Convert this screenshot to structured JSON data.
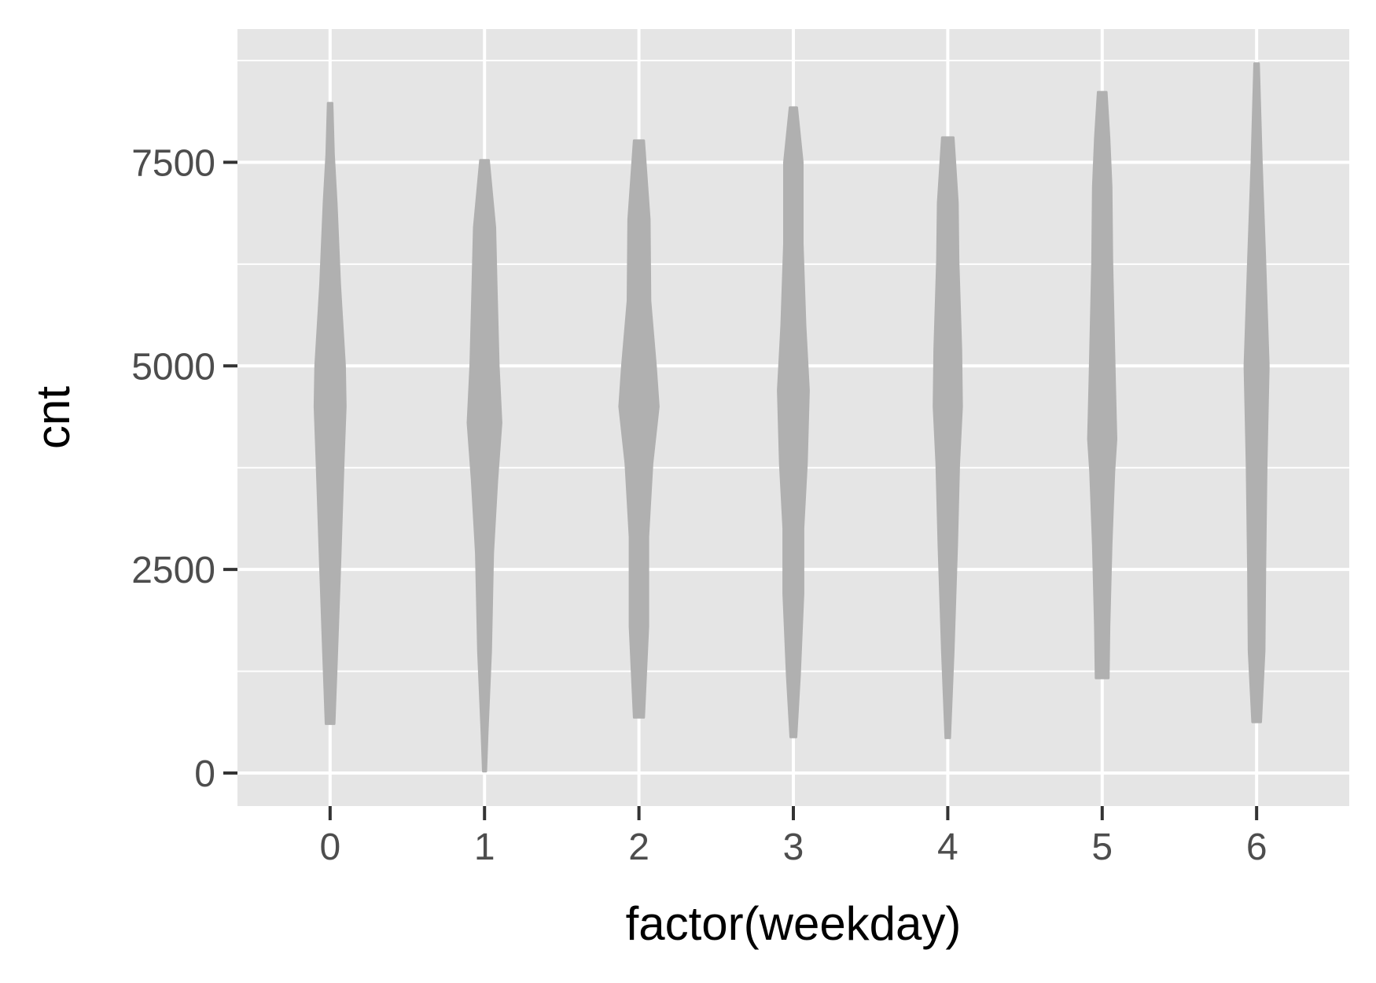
{
  "chart_data": {
    "type": "violin",
    "title": "",
    "xlabel": "factor(weekday)",
    "ylabel": "cnt",
    "categories": [
      "0",
      "1",
      "2",
      "3",
      "4",
      "5",
      "6"
    ],
    "y_ticks": [
      0,
      2500,
      5000,
      7500
    ],
    "ylim": [
      -400,
      9200
    ],
    "grid": true,
    "legend": "none",
    "colors": {
      "panel": "#e5e5e5",
      "grid": "#ffffff",
      "violin": "#b0b0b0",
      "tick_label": "#4d4d4d",
      "axis_title": "#000000"
    },
    "violins": [
      {
        "category": "0",
        "min": 605,
        "max": 8227,
        "profile": [
          [
            605,
            0.06
          ],
          [
            1300,
            0.09
          ],
          [
            2500,
            0.14
          ],
          [
            3800,
            0.19
          ],
          [
            4500,
            0.22
          ],
          [
            5000,
            0.21
          ],
          [
            6000,
            0.14
          ],
          [
            7000,
            0.09
          ],
          [
            7600,
            0.05
          ],
          [
            8227,
            0.03
          ]
        ]
      },
      {
        "category": "1",
        "min": 22,
        "max": 7525,
        "profile": [
          [
            22,
            0.02
          ],
          [
            500,
            0.04
          ],
          [
            1500,
            0.09
          ],
          [
            2700,
            0.12
          ],
          [
            3600,
            0.18
          ],
          [
            4300,
            0.24
          ],
          [
            5000,
            0.2
          ],
          [
            6000,
            0.17
          ],
          [
            6700,
            0.15
          ],
          [
            7525,
            0.06
          ]
        ]
      },
      {
        "category": "2",
        "min": 683,
        "max": 7767,
        "profile": [
          [
            683,
            0.07
          ],
          [
            1800,
            0.13
          ],
          [
            2900,
            0.13
          ],
          [
            3800,
            0.19
          ],
          [
            4500,
            0.28
          ],
          [
            5000,
            0.24
          ],
          [
            5800,
            0.16
          ],
          [
            6800,
            0.15
          ],
          [
            7767,
            0.07
          ]
        ]
      },
      {
        "category": "3",
        "min": 441,
        "max": 8173,
        "profile": [
          [
            441,
            0.04
          ],
          [
            1200,
            0.09
          ],
          [
            2200,
            0.14
          ],
          [
            3000,
            0.14
          ],
          [
            3800,
            0.19
          ],
          [
            4700,
            0.22
          ],
          [
            5500,
            0.17
          ],
          [
            6500,
            0.13
          ],
          [
            7500,
            0.13
          ],
          [
            8173,
            0.05
          ]
        ]
      },
      {
        "category": "4",
        "min": 431,
        "max": 7804,
        "profile": [
          [
            431,
            0.03
          ],
          [
            1500,
            0.08
          ],
          [
            2800,
            0.13
          ],
          [
            3800,
            0.16
          ],
          [
            4500,
            0.2
          ],
          [
            5200,
            0.19
          ],
          [
            6300,
            0.15
          ],
          [
            7000,
            0.14
          ],
          [
            7804,
            0.08
          ]
        ]
      },
      {
        "category": "5",
        "min": 1167,
        "max": 8362,
        "profile": [
          [
            1167,
            0.09
          ],
          [
            1800,
            0.1
          ],
          [
            2800,
            0.13
          ],
          [
            3700,
            0.17
          ],
          [
            4100,
            0.2
          ],
          [
            4800,
            0.18
          ],
          [
            6300,
            0.14
          ],
          [
            7200,
            0.13
          ],
          [
            7800,
            0.1
          ],
          [
            8362,
            0.06
          ]
        ]
      },
      {
        "category": "6",
        "min": 627,
        "max": 8714,
        "profile": [
          [
            627,
            0.06
          ],
          [
            1500,
            0.11
          ],
          [
            2500,
            0.12
          ],
          [
            3800,
            0.14
          ],
          [
            5000,
            0.17
          ],
          [
            6300,
            0.12
          ],
          [
            7500,
            0.07
          ],
          [
            8714,
            0.03
          ]
        ]
      }
    ]
  }
}
